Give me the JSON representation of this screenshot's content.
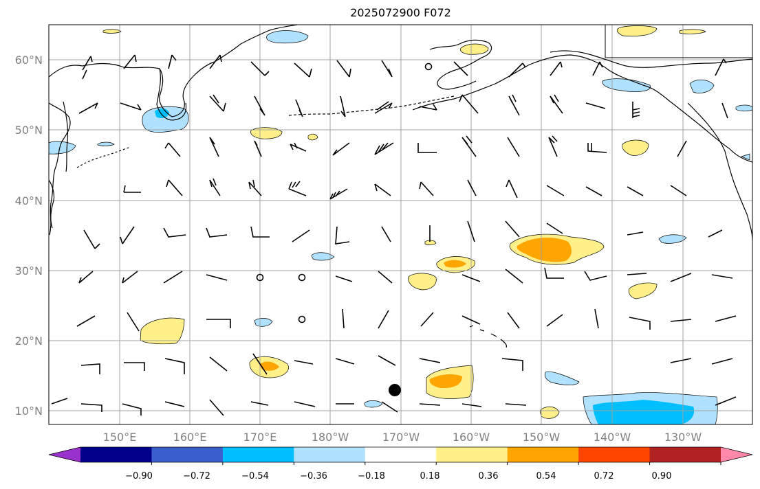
{
  "title": "2025072900 F072",
  "map": {
    "lat_labels": [
      "60°N",
      "50°N",
      "40°N",
      "30°N",
      "20°N",
      "10°N"
    ],
    "lon_labels": [
      "150°E",
      "160°E",
      "170°E",
      "180°W",
      "170°W",
      "160°W",
      "150°W",
      "140°W",
      "130°W"
    ],
    "grid": true
  },
  "colorbar": {
    "colors": [
      "#9932cc",
      "#00008b",
      "#3a5fcd",
      "#00bfff",
      "#b0e2ff",
      "#ffffff",
      "#fff08a",
      "#ffa500",
      "#ff4500",
      "#b22222",
      "#ff88aa"
    ],
    "tick_labels": [
      "−0.90",
      "−0.72",
      "−0.54",
      "−0.36",
      "−0.18",
      "0.18",
      "0.36",
      "0.54",
      "0.72",
      "0.90"
    ]
  }
}
